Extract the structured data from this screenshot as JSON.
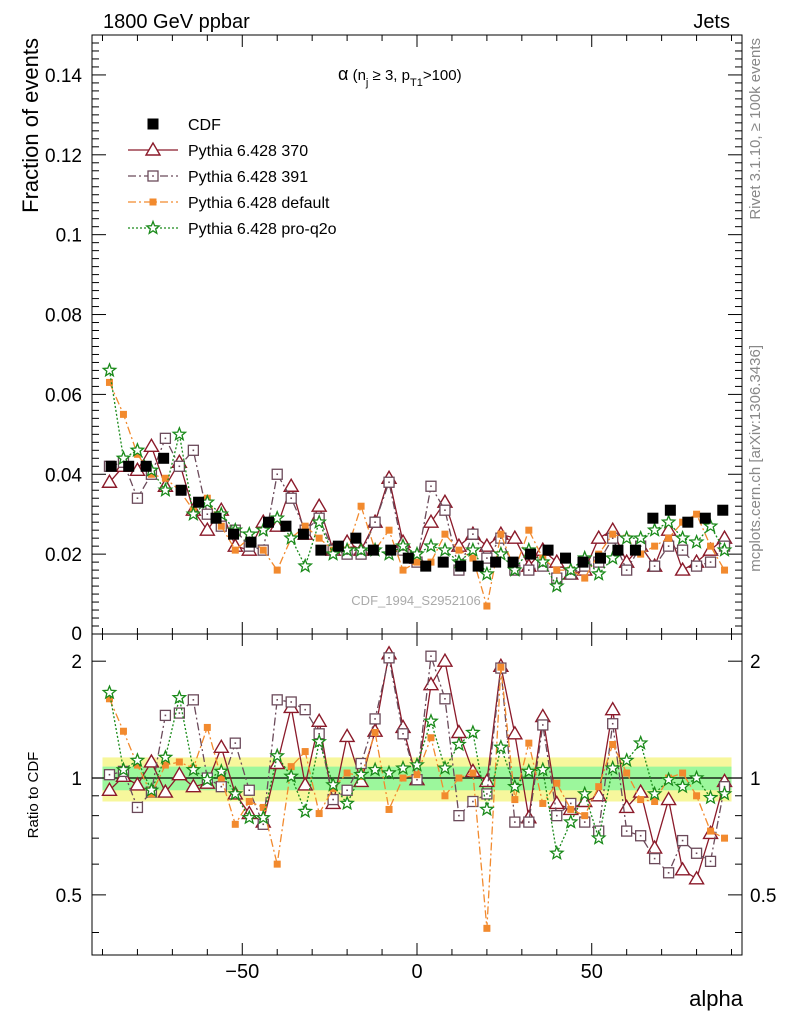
{
  "header": {
    "left": "1800 GeV ppbar",
    "right": "Jets",
    "side_rivet": "Rivet 3.1.10, ≥ 100k events",
    "side_mcplots": "mcplots.cern.ch [arXiv:1306.3436]",
    "watermark": "CDF_1994_S2952106"
  },
  "colors": {
    "cdf": "#000000",
    "p370": "#8b1a2a",
    "p391": "#6b4a5a",
    "pdefault": "#f28a2e",
    "pq2o": "#1a8a1a",
    "band_inner": "#9cf79c",
    "band_outer": "#f7f79c"
  },
  "chart_data": [
    {
      "type": "scatter",
      "panel": "main",
      "title_parts": {
        "alpha": "α",
        "open": " (n",
        "sub_j": "j",
        "mid": " ≥ 3, p",
        "sub_t1": "T1",
        "close": ">100)"
      },
      "xlabel": "alpha",
      "ylabel": "Fraction of events",
      "xlim": [
        -93,
        93
      ],
      "ylim": [
        0,
        0.15
      ],
      "yticks": [
        "0.02",
        "0.04",
        "0.06",
        "0.08",
        "0.1",
        "0.12",
        "0.14"
      ],
      "legend_position": "top-left",
      "x": [
        -87.5,
        -82.5,
        -77.5,
        -72.5,
        -67.5,
        -62.5,
        -57.5,
        -52.5,
        -47.5,
        -42.5,
        -37.5,
        -32.5,
        -27.5,
        -22.5,
        -17.5,
        -12.5,
        -7.5,
        -2.5,
        2.5,
        7.5,
        12.5,
        17.5,
        22.5,
        27.5,
        32.5,
        37.5,
        42.5,
        47.5,
        52.5,
        57.5,
        62.5,
        67.5,
        72.5,
        77.5,
        82.5,
        87.5
      ],
      "x_pythia": [
        -88,
        -84,
        -80,
        -76,
        -72,
        -68,
        -64,
        -60,
        -56,
        -52,
        -48,
        -44,
        -40,
        -36,
        -32,
        -28,
        -24,
        -20,
        -16,
        -12,
        -8,
        -4,
        0,
        4,
        8,
        12,
        16,
        20,
        24,
        28,
        32,
        36,
        40,
        44,
        48,
        52,
        56,
        60,
        64,
        68,
        72,
        76,
        80,
        84,
        88
      ],
      "series": [
        {
          "name": "CDF",
          "marker": "square-filled",
          "line": "none",
          "values": [
            0.042,
            0.042,
            0.042,
            0.044,
            0.036,
            0.033,
            0.029,
            0.025,
            0.023,
            0.028,
            0.027,
            0.025,
            0.021,
            0.022,
            0.024,
            0.021,
            0.021,
            0.019,
            0.017,
            0.018,
            0.017,
            0.017,
            0.018,
            0.018,
            0.02,
            0.021,
            0.019,
            0.018,
            0.019,
            0.021,
            0.021,
            0.029,
            0.031,
            0.028,
            0.029,
            0.031
          ]
        },
        {
          "name": "Pythia 6.428 370",
          "marker": "triangle-open",
          "line": "solid",
          "values": [
            0.038,
            0.042,
            0.041,
            0.047,
            0.037,
            0.043,
            0.031,
            0.026,
            0.031,
            0.022,
            0.021,
            0.028,
            0.027,
            0.037,
            0.025,
            0.032,
            0.021,
            0.023,
            0.021,
            0.028,
            0.039,
            0.023,
            0.019,
            0.028,
            0.033,
            0.022,
            0.025,
            0.022,
            0.025,
            0.024,
            0.017,
            0.021,
            0.018,
            0.015,
            0.016,
            0.024,
            0.026,
            0.018,
            0.022,
            0.017,
            0.026,
            0.016,
            0.018,
            0.021,
            0.024
          ]
        },
        {
          "name": "Pythia 6.428 391",
          "marker": "square-open",
          "line": "dashdot",
          "values": [
            0.042,
            0.043,
            0.034,
            0.04,
            0.049,
            0.042,
            0.046,
            0.03,
            0.027,
            0.026,
            0.022,
            0.021,
            0.04,
            0.034,
            0.026,
            0.029,
            0.021,
            0.02,
            0.02,
            0.028,
            0.038,
            0.021,
            0.018,
            0.037,
            0.031,
            0.016,
            0.025,
            0.019,
            0.024,
            0.016,
            0.016,
            0.017,
            0.014,
            0.015,
            0.017,
            0.018,
            0.024,
            0.016,
            0.022,
            0.017,
            0.022,
            0.021,
            0.017,
            0.018,
            0.022
          ]
        },
        {
          "name": "Pythia 6.428 default",
          "marker": "square-filled-small",
          "line": "dashdot",
          "values": [
            0.063,
            0.055,
            0.045,
            0.04,
            0.039,
            0.036,
            0.031,
            0.034,
            0.027,
            0.021,
            0.024,
            0.021,
            0.016,
            0.024,
            0.027,
            0.024,
            0.021,
            0.021,
            0.032,
            0.021,
            0.026,
            0.016,
            0.018,
            0.018,
            0.025,
            0.021,
            0.019,
            0.007,
            0.025,
            0.016,
            0.026,
            0.019,
            0.016,
            0.016,
            0.014,
            0.02,
            0.025,
            0.024,
            0.02,
            0.022,
            0.024,
            0.028,
            0.03,
            0.022,
            0.016
          ]
        },
        {
          "name": "Pythia 6.428 pro-q2o",
          "marker": "star",
          "line": "dotted",
          "values": [
            0.066,
            0.044,
            0.046,
            0.041,
            0.036,
            0.05,
            0.03,
            0.033,
            0.03,
            0.026,
            0.025,
            0.026,
            0.029,
            0.024,
            0.017,
            0.028,
            0.02,
            0.021,
            0.021,
            0.021,
            0.02,
            0.022,
            0.02,
            0.022,
            0.021,
            0.018,
            0.021,
            0.015,
            0.02,
            0.016,
            0.021,
            0.018,
            0.012,
            0.016,
            0.019,
            0.015,
            0.019,
            0.024,
            0.024,
            0.026,
            0.028,
            0.024,
            0.023,
            0.027,
            0.021
          ]
        }
      ]
    },
    {
      "type": "scatter",
      "panel": "ratio",
      "ylabel": "Ratio to CDF",
      "xlabel": "alpha",
      "xlim": [
        -93,
        93
      ],
      "ylim": [
        0.35,
        2.35
      ],
      "yticks_major": [
        "0.5",
        "1",
        "2"
      ],
      "xticks_major": [
        "−50",
        "0",
        "50"
      ],
      "xtick_values": [
        -50,
        0,
        50
      ],
      "band_inner": [
        0.93,
        1.07
      ],
      "band_outer": [
        0.87,
        1.13
      ],
      "series": [
        {
          "name": "Pythia 6.428 370",
          "values": [
            0.93,
            1.01,
            0.96,
            1.1,
            0.92,
            1.02,
            0.95,
            0.97,
            1.2,
            0.91,
            0.81,
            0.77,
            1.09,
            1.52,
            0.96,
            1.4,
            0.86,
            1.28,
            0.98,
            1.32,
            2.09,
            1.35,
            0.99,
            1.74,
            2.0,
            1.31,
            1.04,
            0.98,
            1.94,
            1.3,
            0.79,
            1.44,
            0.86,
            0.83,
            0.87,
            0.9,
            1.5,
            0.84,
            0.92,
            0.66,
            0.88,
            0.58,
            0.55,
            0.72,
            0.98
          ]
        },
        {
          "name": "Pythia 6.428 391",
          "values": [
            1.02,
            1.04,
            0.84,
            0.92,
            1.45,
            1.47,
            1.59,
            1.0,
            0.95,
            1.23,
            0.93,
            0.76,
            1.59,
            1.57,
            1.5,
            1.3,
            0.88,
            0.93,
            1.09,
            1.42,
            2.04,
            1.3,
            0.99,
            2.06,
            1.6,
            0.8,
            0.87,
            0.91,
            1.92,
            0.77,
            0.77,
            1.37,
            0.8,
            0.86,
            0.77,
            0.73,
            1.38,
            0.73,
            0.71,
            0.62,
            0.57,
            0.69,
            0.64,
            0.61,
            0.95
          ]
        },
        {
          "name": "Pythia 6.428 default",
          "values": [
            1.6,
            1.32,
            1.08,
            0.91,
            1.08,
            1.1,
            1.06,
            1.35,
            1.0,
            0.76,
            0.87,
            0.84,
            0.6,
            1.07,
            1.17,
            0.81,
            0.94,
            1.03,
            1.01,
            1.31,
            0.83,
            1.0,
            1.02,
            1.27,
            0.9,
            1.0,
            1.03,
            0.41,
            1.93,
            0.88,
            1.23,
            0.86,
            0.97,
            0.83,
            0.8,
            0.95,
            1.22,
            1.03,
            0.88,
            0.87,
            1.0,
            1.03,
            0.9,
            0.73,
            0.7
          ]
        },
        {
          "name": "Pythia 6.428 pro-q2o",
          "values": [
            1.66,
            1.05,
            1.11,
            0.93,
            1.13,
            1.61,
            1.05,
            0.99,
            1.04,
            0.91,
            0.79,
            0.79,
            1.14,
            1.01,
            0.82,
            1.24,
            0.96,
            0.86,
            1.02,
            1.05,
            1.03,
            1.06,
            1.08,
            1.4,
            1.06,
            1.22,
            1.31,
            0.83,
            1.2,
            0.95,
            1.04,
            1.05,
            0.64,
            0.77,
            0.91,
            0.7,
            1.06,
            1.11,
            1.23,
            0.91,
            0.99,
            0.95,
            1.0,
            0.89,
            0.91
          ]
        }
      ]
    }
  ]
}
